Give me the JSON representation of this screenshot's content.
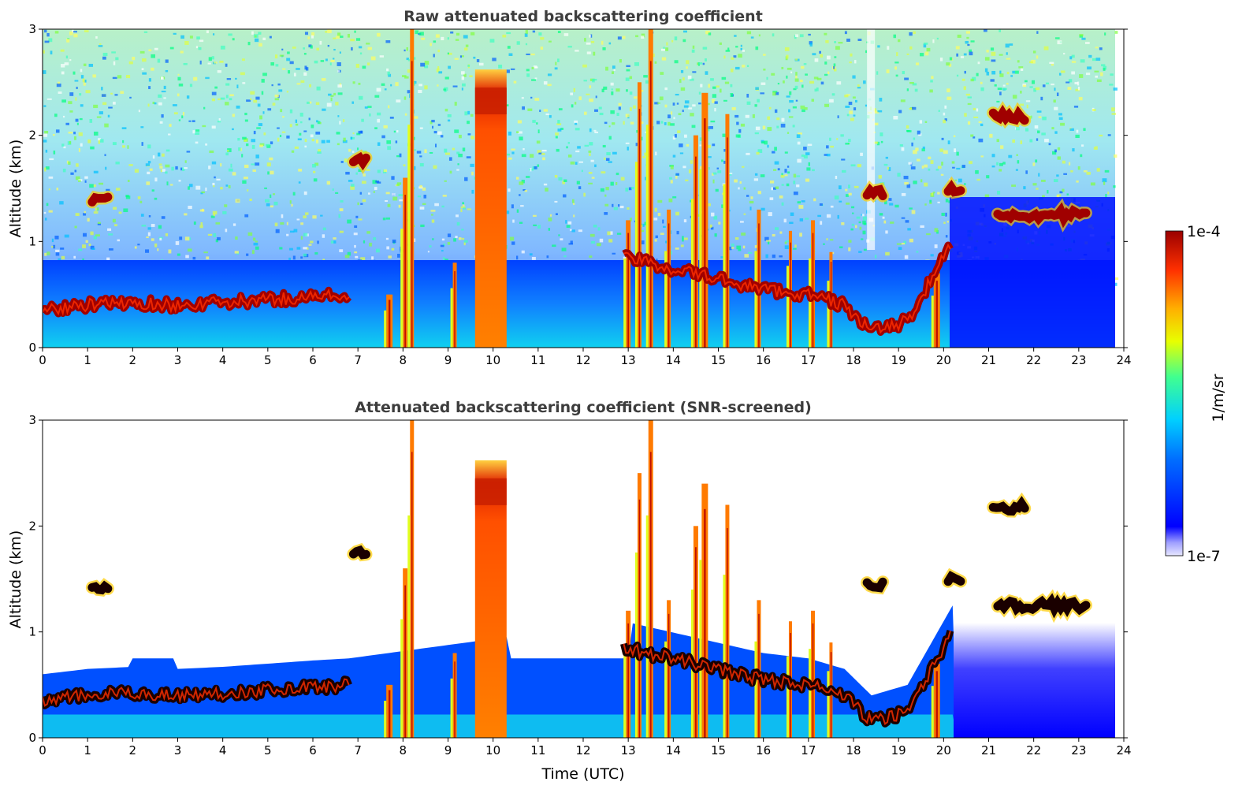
{
  "chart_data": [
    {
      "type": "heatmap",
      "title": "Raw attenuated backscattering coefficient",
      "xlabel": "",
      "ylabel": "Altitude (km)",
      "xlim": [
        0,
        24
      ],
      "ylim": [
        0,
        3
      ],
      "x_ticks": [
        "0",
        "1",
        "2",
        "3",
        "4",
        "5",
        "6",
        "7",
        "8",
        "9",
        "10",
        "11",
        "12",
        "13",
        "14",
        "15",
        "16",
        "17",
        "18",
        "19",
        "20",
        "21",
        "22",
        "23",
        "24"
      ],
      "y_ticks": [
        "0",
        "1",
        "2",
        "3"
      ],
      "features": {
        "boundary_layer_top_km": [
          {
            "x": 0.0,
            "y": 0.35
          },
          {
            "x": 1.0,
            "y": 0.4
          },
          {
            "x": 2.0,
            "y": 0.42
          },
          {
            "x": 3.0,
            "y": 0.4
          },
          {
            "x": 4.0,
            "y": 0.42
          },
          {
            "x": 5.0,
            "y": 0.45
          },
          {
            "x": 6.0,
            "y": 0.48
          },
          {
            "x": 6.8,
            "y": 0.5
          },
          {
            "x": 12.9,
            "y": 0.85
          },
          {
            "x": 16.0,
            "y": 0.55
          },
          {
            "x": 17.0,
            "y": 0.5
          },
          {
            "x": 17.8,
            "y": 0.4
          },
          {
            "x": 18.4,
            "y": 0.15
          },
          {
            "x": 19.2,
            "y": 0.25
          },
          {
            "x": 19.8,
            "y": 0.7
          },
          {
            "x": 20.2,
            "y": 1.0
          }
        ],
        "cloud_layers": [
          {
            "x_start": 9.6,
            "x_end": 10.3,
            "y_center": 2.3,
            "note": "thick"
          },
          {
            "x_start": 21.1,
            "x_end": 21.8,
            "y_center": 2.18
          },
          {
            "x_start": 21.2,
            "x_end": 23.2,
            "y_center": 1.25
          },
          {
            "x_start": 18.3,
            "x_end": 18.7,
            "y_center": 1.45
          },
          {
            "x_start": 20.1,
            "x_end": 20.4,
            "y_center": 1.5
          },
          {
            "x_start": 1.1,
            "x_end": 1.5,
            "y_center": 1.4
          },
          {
            "x_start": 6.9,
            "x_end": 7.2,
            "y_center": 1.75
          }
        ]
      }
    },
    {
      "type": "heatmap",
      "title": "Attenuated backscattering coefficient (SNR-screened)",
      "xlabel": "Time (UTC)",
      "ylabel": "Altitude (km)",
      "xlim": [
        0,
        24
      ],
      "ylim": [
        0,
        3
      ],
      "x_ticks": [
        "0",
        "1",
        "2",
        "3",
        "4",
        "5",
        "6",
        "7",
        "8",
        "9",
        "10",
        "11",
        "12",
        "13",
        "14",
        "15",
        "16",
        "17",
        "18",
        "19",
        "20",
        "21",
        "22",
        "23",
        "24"
      ],
      "y_ticks": [
        "0",
        "1",
        "2",
        "3"
      ]
    }
  ],
  "colorbar": {
    "label": "1/m/sr",
    "max_label": "1e-4",
    "min_label": "1e-7",
    "scale": "log",
    "colormap": [
      "#e6e6ff",
      "#0000ff",
      "#0080ff",
      "#00e0ff",
      "#40ff80",
      "#e0ff00",
      "#ffb000",
      "#ff4000",
      "#a00000"
    ]
  }
}
